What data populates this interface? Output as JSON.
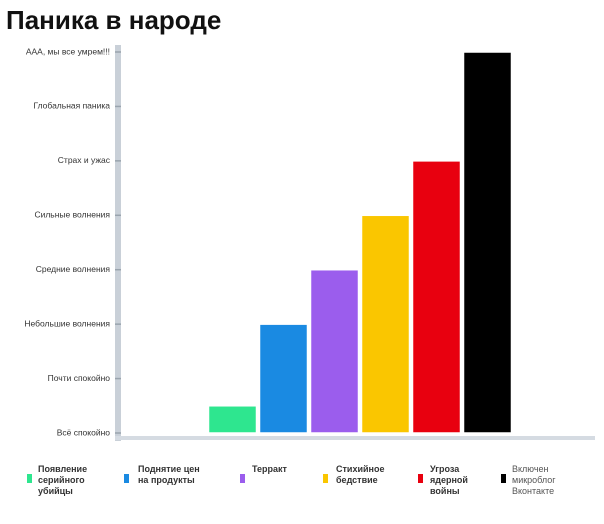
{
  "chart_data": {
    "type": "bar",
    "title": "Паника в народе",
    "categories": [
      "Появление серийного убийцы",
      "Поднятие цен на продукты",
      "Терракт",
      "Стихийное бедствие",
      "Угроза ядерной войны",
      "Включен микроблог Вконтакте"
    ],
    "values": [
      0.5,
      2,
      3,
      4,
      5,
      7
    ],
    "colors": [
      "#2ee68f",
      "#1a8ae2",
      "#9b5ded",
      "#fac600",
      "#e8000f",
      "#000000"
    ],
    "ylim": [
      0,
      7
    ],
    "yticks": [
      {
        "value": 0,
        "label": "Всё спокойно"
      },
      {
        "value": 1,
        "label": "Почти спокойно"
      },
      {
        "value": 2,
        "label": "Небольшие волнения"
      },
      {
        "value": 3,
        "label": "Средние волнения"
      },
      {
        "value": 4,
        "label": "Сильные волнения"
      },
      {
        "value": 5,
        "label": "Страх и ужас"
      },
      {
        "value": 6,
        "label": "Глобальная паника"
      },
      {
        "value": 7,
        "label": "ААА, мы все умрем!!!"
      }
    ]
  }
}
